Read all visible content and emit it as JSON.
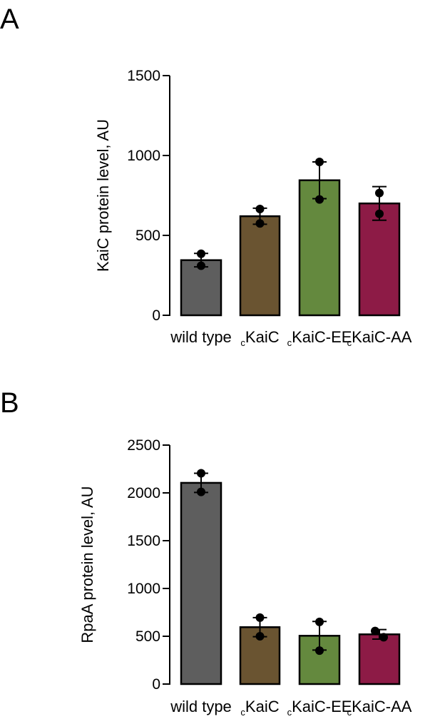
{
  "panels": [
    {
      "label": "A"
    },
    {
      "label": "B"
    }
  ],
  "chart_data": [
    {
      "type": "bar",
      "title": "",
      "ylabel": "KaiC protein level, AU",
      "xlabel": "",
      "ylim": [
        0,
        1500
      ],
      "yticks": [
        0,
        500,
        1000,
        1500
      ],
      "categories": [
        {
          "prefix": "",
          "name": "wild type"
        },
        {
          "prefix": "c",
          "name": "KaiC"
        },
        {
          "prefix": "c",
          "name": "KaiC-EE"
        },
        {
          "prefix": "c",
          "name": "KaiC-AA"
        }
      ],
      "values": [
        345,
        620,
        845,
        700
      ],
      "error": [
        42,
        50,
        115,
        105
      ],
      "points": [
        [
          385,
          310
        ],
        [
          665,
          575
        ],
        [
          960,
          725
        ],
        [
          765,
          635
        ]
      ],
      "colors": [
        "#5e5e5e",
        "#6a5431",
        "#64893e",
        "#8d1b46"
      ]
    },
    {
      "type": "bar",
      "title": "",
      "ylabel": "RpaA protein level, AU",
      "xlabel": "",
      "ylim": [
        0,
        2500
      ],
      "yticks": [
        0,
        500,
        1000,
        1500,
        2000,
        2500
      ],
      "categories": [
        {
          "prefix": "",
          "name": "wild type"
        },
        {
          "prefix": "c",
          "name": "KaiC"
        },
        {
          "prefix": "c",
          "name": "KaiC-EE"
        },
        {
          "prefix": "c",
          "name": "KaiC-AA"
        }
      ],
      "values": [
        2105,
        595,
        505,
        520
      ],
      "error": [
        100,
        100,
        150,
        50
      ],
      "points": [
        [
          2205,
          2010
        ],
        [
          695,
          500
        ],
        [
          650,
          350
        ],
        [
          555,
          490
        ]
      ],
      "colors": [
        "#5e5e5e",
        "#6a5431",
        "#64893e",
        "#8d1b46"
      ]
    }
  ]
}
